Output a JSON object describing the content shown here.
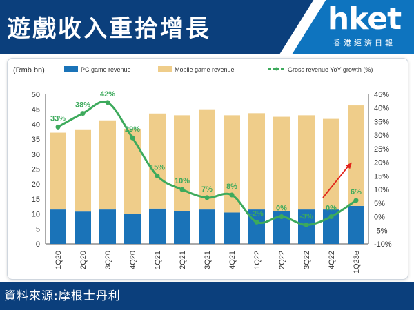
{
  "header": {
    "title": "遊戲收入重拾增長"
  },
  "logo": {
    "main": "hket",
    "sub": "香港經濟日報"
  },
  "footer": {
    "source": "資料來源:摩根士丹利"
  },
  "colors": {
    "pc": "#1a73b8",
    "mobile": "#efcd8a",
    "growth": "#3daa5c",
    "arrow": "#e2231a",
    "banner": "#0b3f7c",
    "logo_bg": "#0e74bf"
  },
  "chart_data": {
    "type": "bar",
    "categories": [
      "1Q20",
      "2Q20",
      "3Q20",
      "4Q20",
      "1Q21",
      "2Q21",
      "3Q21",
      "4Q21",
      "1Q22",
      "2Q22",
      "3Q22",
      "4Q22",
      "1Q23e"
    ],
    "series": [
      {
        "name": "PC game revenue",
        "type": "bar",
        "stack": "total",
        "values": [
          11.5,
          10.8,
          11.5,
          10.0,
          11.8,
          11.0,
          11.5,
          10.5,
          11.5,
          11.0,
          11.5,
          11.5,
          12.7
        ]
      },
      {
        "name": "Mobile game revenue",
        "type": "bar",
        "stack": "total",
        "values": [
          25.7,
          27.5,
          29.8,
          28.5,
          31.8,
          32.0,
          33.5,
          32.5,
          32.2,
          31.5,
          31.5,
          30.3,
          33.6
        ]
      },
      {
        "name": "Gross revenue YoY growth (%)",
        "type": "line",
        "axis": "right",
        "values": [
          33,
          38,
          42,
          29,
          15,
          10,
          7,
          8,
          -2,
          0,
          -3,
          0,
          6
        ]
      }
    ],
    "growth_labels": [
      "33%",
      "38%",
      "42%",
      "29%",
      "15%",
      "10%",
      "7%",
      "8%",
      "-2%",
      "0%",
      "-3%",
      "0%",
      "6%"
    ],
    "ylabel": "(Rmb bn)",
    "ylim": [
      0,
      50
    ],
    "y_ticks": [
      "0",
      "5",
      "10",
      "15",
      "20",
      "25",
      "30",
      "35",
      "40",
      "45",
      "50"
    ],
    "y2lim": [
      -10,
      45
    ],
    "y2_ticks": [
      "-10%",
      "-5%",
      "0%",
      "5%",
      "10%",
      "15%",
      "20%",
      "25%",
      "30%",
      "35%",
      "40%",
      "45%"
    ],
    "legend_position": "top",
    "grid": false
  }
}
